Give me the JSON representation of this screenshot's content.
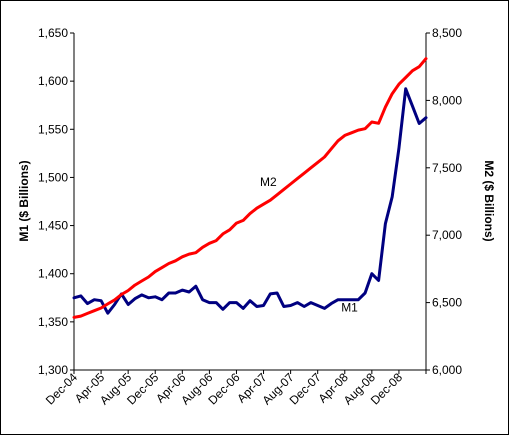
{
  "chart_data": {
    "type": "line",
    "title": "",
    "ylabel_left": "M1 ($ Billions)",
    "ylabel_right": "M2 ($ Billions)",
    "xlabel": "",
    "grid": false,
    "legend": "none",
    "x_tick_labels": [
      "Dec-04",
      "Apr-05",
      "Aug-05",
      "Dec-05",
      "Apr-06",
      "Aug-06",
      "Dec-06",
      "Apr-07",
      "Aug-07",
      "Dec-07",
      "Apr-08",
      "Aug-08",
      "Dec-08"
    ],
    "x_tick_months": [
      0,
      4,
      8,
      12,
      16,
      20,
      24,
      28,
      32,
      36,
      40,
      44,
      48
    ],
    "x_range_months": [
      0,
      52
    ],
    "y_left": {
      "range": [
        1300,
        1650
      ],
      "ticks": [
        1300,
        1350,
        1400,
        1450,
        1500,
        1550,
        1600,
        1650
      ],
      "tick_labels": [
        "1,300",
        "1,350",
        "1,400",
        "1,450",
        "1,500",
        "1,550",
        "1,600",
        "1,650"
      ]
    },
    "y_right": {
      "range": [
        6000,
        8500
      ],
      "ticks": [
        6000,
        6500,
        7000,
        7500,
        8000,
        8500
      ],
      "tick_labels": [
        "6,000",
        "6,500",
        "7,000",
        "7,500",
        "8,000",
        "8,500"
      ]
    },
    "series": [
      {
        "name": "M1",
        "axis": "left",
        "color": "#000080",
        "x_months": [
          0,
          1,
          2,
          3,
          4,
          5,
          6,
          7,
          8,
          9,
          10,
          11,
          12,
          13,
          14,
          15,
          16,
          17,
          18,
          19,
          20,
          21,
          22,
          23,
          24,
          25,
          26,
          27,
          28,
          29,
          30,
          31,
          32,
          33,
          34,
          35,
          36,
          37,
          38,
          39,
          40,
          41,
          42,
          43,
          44,
          45,
          46,
          47,
          48,
          49,
          50,
          51,
          52
        ],
        "values": [
          1375,
          1377,
          1369,
          1373,
          1372,
          1359,
          1368,
          1379,
          1368,
          1374,
          1378,
          1375,
          1376,
          1373,
          1380,
          1380,
          1383,
          1381,
          1387,
          1373,
          1370,
          1370,
          1363,
          1370,
          1370,
          1364,
          1372,
          1366,
          1367,
          1379,
          1380,
          1366,
          1367,
          1370,
          1366,
          1370,
          1367,
          1364,
          1369,
          1373,
          1373,
          1373,
          1373,
          1380,
          1400,
          1393,
          1452,
          1480,
          1530,
          1592,
          1574,
          1556,
          1562
        ]
      },
      {
        "name": "M2",
        "axis": "right",
        "color": "#ff0000",
        "x_months": [
          0,
          1,
          2,
          3,
          4,
          5,
          6,
          7,
          8,
          9,
          10,
          11,
          12,
          13,
          14,
          15,
          16,
          17,
          18,
          19,
          20,
          21,
          22,
          23,
          24,
          25,
          26,
          27,
          28,
          29,
          30,
          31,
          32,
          33,
          34,
          35,
          36,
          37,
          38,
          39,
          40,
          41,
          42,
          43,
          44,
          45,
          46,
          47,
          48,
          49,
          50,
          51,
          52
        ],
        "values": [
          6390,
          6400,
          6420,
          6440,
          6460,
          6490,
          6520,
          6560,
          6590,
          6630,
          6660,
          6690,
          6730,
          6760,
          6790,
          6810,
          6840,
          6860,
          6870,
          6910,
          6940,
          6960,
          7010,
          7040,
          7090,
          7110,
          7160,
          7200,
          7230,
          7260,
          7300,
          7340,
          7380,
          7420,
          7460,
          7500,
          7540,
          7580,
          7640,
          7700,
          7740,
          7760,
          7780,
          7790,
          7840,
          7830,
          7950,
          8050,
          8120,
          8170,
          8220,
          8250,
          8310
        ]
      }
    ],
    "annotations": [
      {
        "text": "M2",
        "series": "M2",
        "x_month": 29
      },
      {
        "text": "M1",
        "series": "M1",
        "x_month": 41
      }
    ]
  }
}
